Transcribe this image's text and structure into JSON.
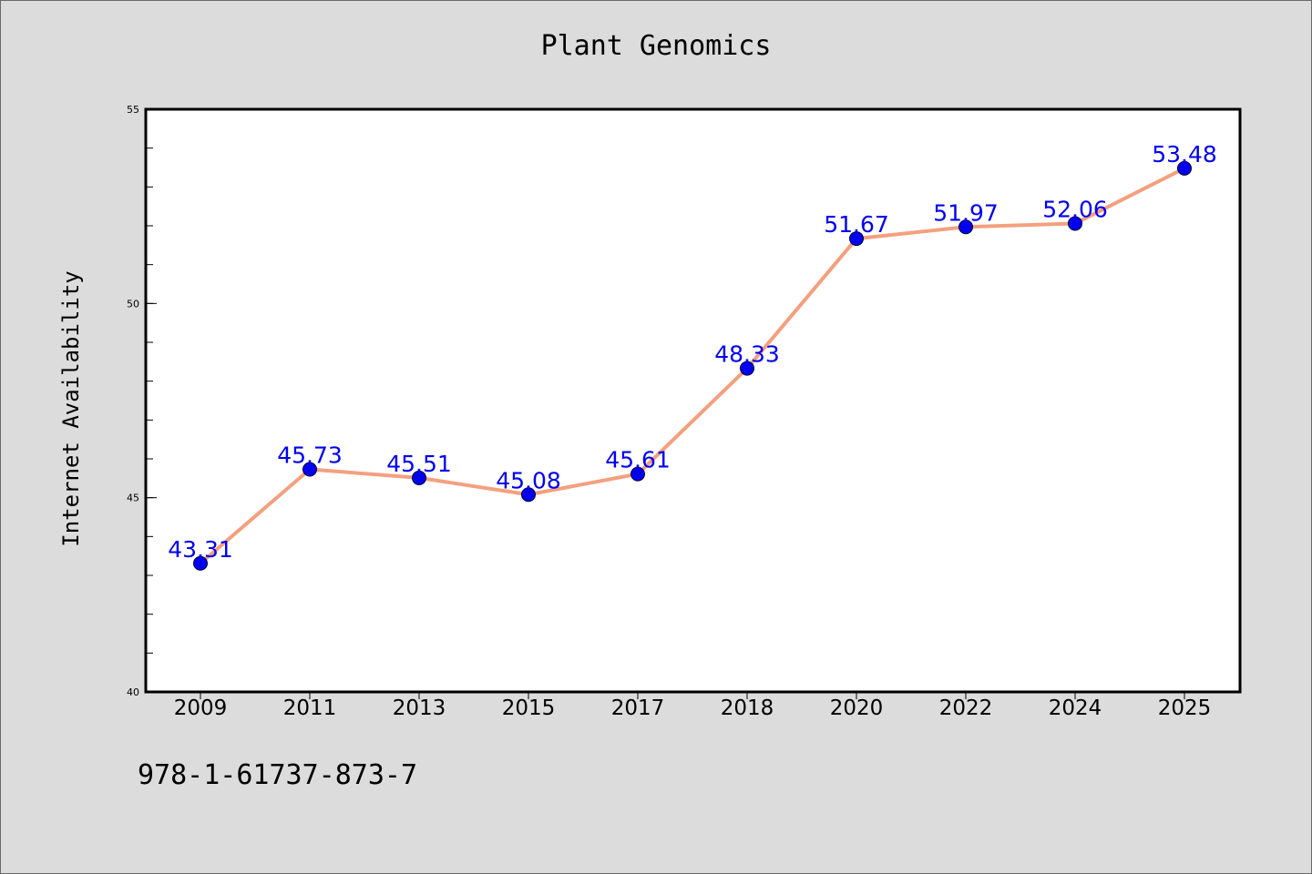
{
  "page": {
    "background": "#dcdcdc",
    "plot_background": "#ffffff",
    "footer_text": "978-1-61737-873-7"
  },
  "chart_data": {
    "type": "line",
    "title": "Plant Genomics",
    "xlabel": "",
    "ylabel": "Internet Availability",
    "categories": [
      "2009",
      "2011",
      "2013",
      "2015",
      "2017",
      "2018",
      "2020",
      "2022",
      "2024",
      "2025"
    ],
    "series": [
      {
        "values": [
          43.31,
          45.73,
          45.51,
          45.08,
          45.61,
          48.33,
          51.67,
          51.97,
          52.06,
          53.48
        ],
        "line_color": "#f4a07f",
        "marker_color": "#0000ee",
        "label_color": "#0000ee"
      }
    ],
    "ylim": [
      40,
      55
    ],
    "y_major_ticks": [
      40,
      45,
      50,
      55
    ],
    "y_minor_step": 1,
    "grid": false,
    "legend": "none",
    "data_labels": true
  }
}
